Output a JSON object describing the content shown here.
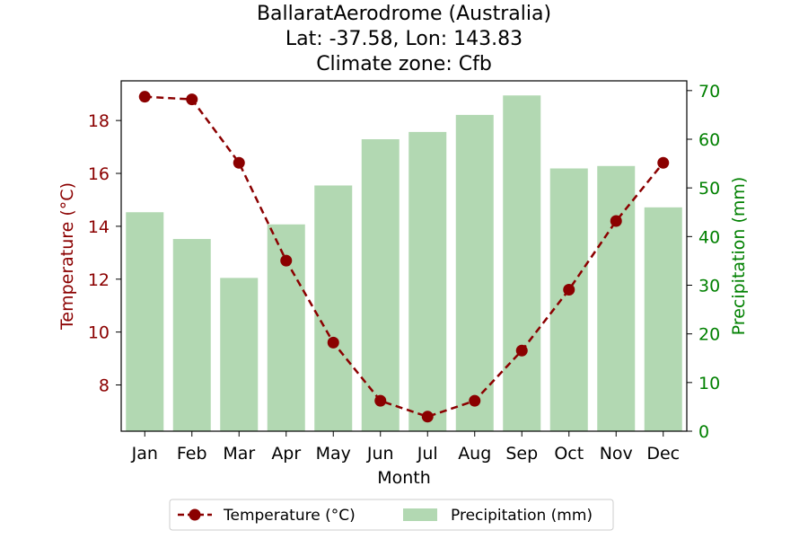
{
  "chart_data": {
    "type": "bar+line",
    "title_lines": [
      "BallaratAerodrome (Australia)",
      "Lat: -37.58, Lon: 143.83",
      "Climate zone: Cfb"
    ],
    "xlabel": "Month",
    "categories": [
      "Jan",
      "Feb",
      "Mar",
      "Apr",
      "May",
      "Jun",
      "Jul",
      "Aug",
      "Sep",
      "Oct",
      "Nov",
      "Dec"
    ],
    "temperature": {
      "name": "Temperature (°C)",
      "axis_label": "Temperature (°C)",
      "color": "#8b0000",
      "values": [
        18.9,
        18.8,
        16.4,
        12.7,
        9.6,
        7.4,
        6.8,
        7.4,
        9.3,
        11.6,
        14.2,
        16.4
      ],
      "ylim": [
        6.25,
        19.5
      ],
      "ticks": [
        8,
        10,
        12,
        14,
        16,
        18
      ]
    },
    "precipitation": {
      "name": "Precipitation (mm)",
      "axis_label": "Precipitation (mm)",
      "color": "#008000",
      "bar_color": "#b2d8b2",
      "values": [
        45,
        39.5,
        31.5,
        42.5,
        50.5,
        60,
        61.5,
        65,
        69,
        54,
        54.5,
        46
      ],
      "ylim": [
        0,
        72
      ],
      "ticks": [
        0,
        10,
        20,
        30,
        40,
        50,
        60,
        70
      ]
    },
    "legend_position": "bottom-center"
  }
}
